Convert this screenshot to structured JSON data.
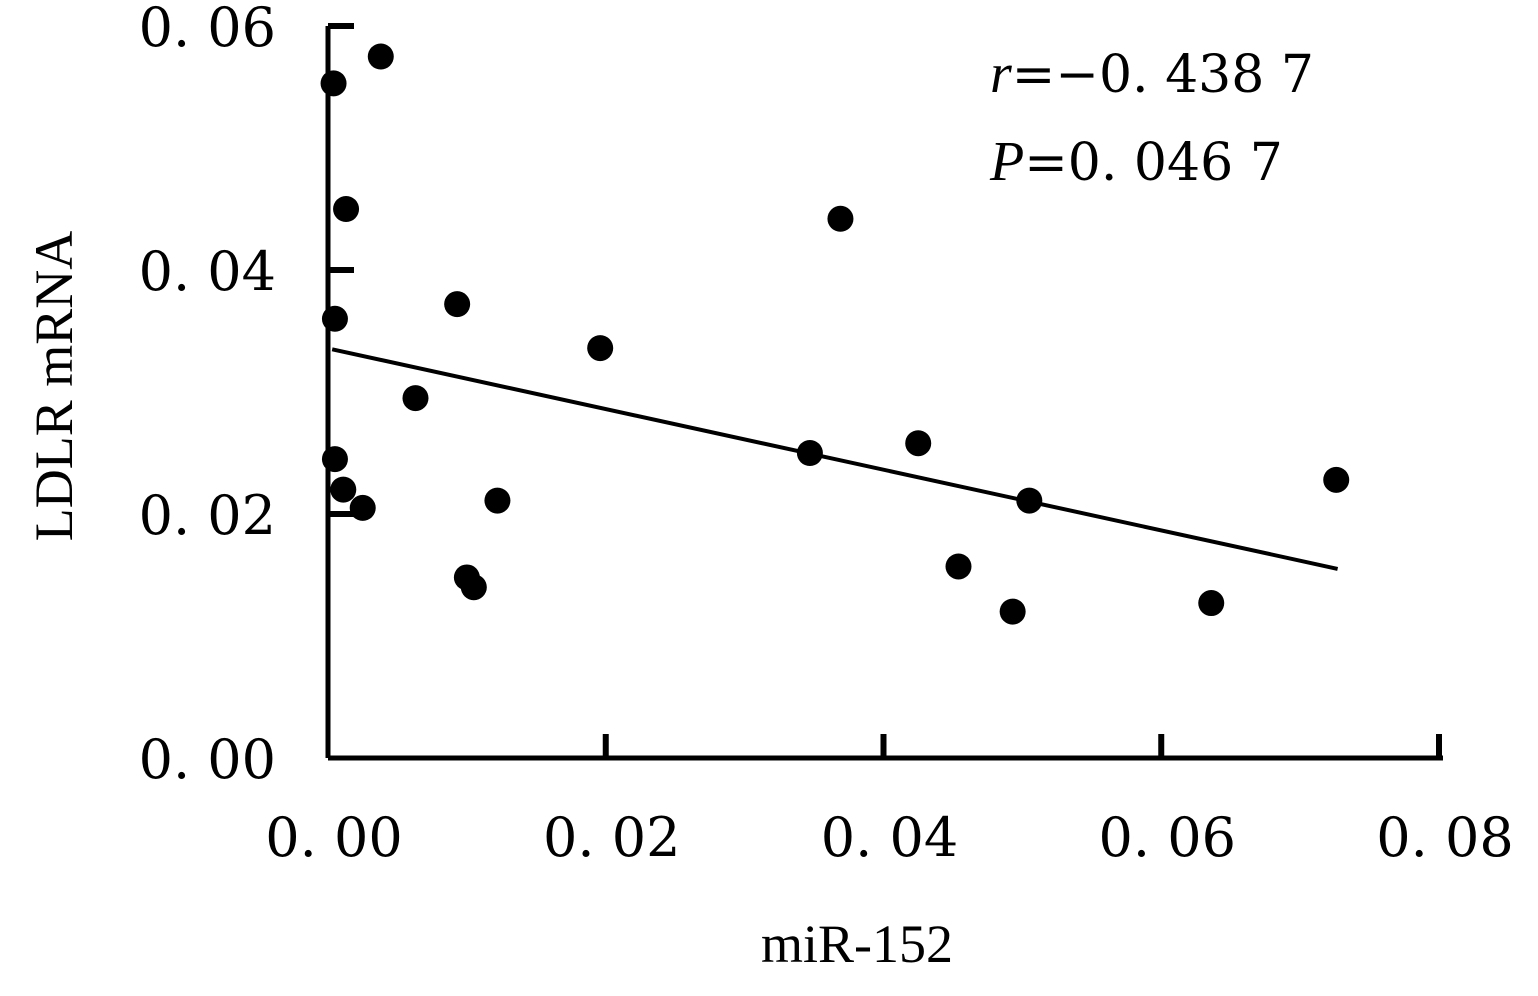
{
  "chart_data": {
    "type": "scatter",
    "xlabel": "miR-152",
    "ylabel": "LDLR mRNA",
    "xlim": [
      0.0,
      0.08
    ],
    "ylim": [
      0.0,
      0.06
    ],
    "x_ticks": [
      0.0,
      0.02,
      0.04,
      0.06,
      0.08
    ],
    "y_ticks": [
      0.0,
      0.02,
      0.04,
      0.06
    ],
    "x_tick_labels": [
      "0. 00",
      "0. 02",
      "0. 04",
      "0. 06",
      "0. 08"
    ],
    "y_tick_labels": [
      "0. 00",
      "0. 02",
      "0. 04",
      "0. 06"
    ],
    "grid": false,
    "points": [
      {
        "x": 0.0004,
        "y": 0.0553
      },
      {
        "x": 0.0038,
        "y": 0.0575
      },
      {
        "x": 0.0013,
        "y": 0.045
      },
      {
        "x": 0.0005,
        "y": 0.036
      },
      {
        "x": 0.0005,
        "y": 0.0245
      },
      {
        "x": 0.0011,
        "y": 0.022
      },
      {
        "x": 0.0025,
        "y": 0.0205
      },
      {
        "x": 0.0063,
        "y": 0.0295
      },
      {
        "x": 0.0093,
        "y": 0.0372
      },
      {
        "x": 0.01,
        "y": 0.0148
      },
      {
        "x": 0.0105,
        "y": 0.014
      },
      {
        "x": 0.0122,
        "y": 0.0211
      },
      {
        "x": 0.0196,
        "y": 0.0336
      },
      {
        "x": 0.0347,
        "y": 0.025
      },
      {
        "x": 0.0369,
        "y": 0.0442
      },
      {
        "x": 0.0425,
        "y": 0.0258
      },
      {
        "x": 0.0454,
        "y": 0.0157
      },
      {
        "x": 0.0493,
        "y": 0.012
      },
      {
        "x": 0.0505,
        "y": 0.0211
      },
      {
        "x": 0.0636,
        "y": 0.0127
      },
      {
        "x": 0.0726,
        "y": 0.0228
      }
    ],
    "fit_line": {
      "x": [
        0.0003,
        0.0727
      ],
      "y": [
        0.0335,
        0.0155
      ]
    },
    "annotations": [
      {
        "italic": "r",
        "text": "=−0. 438 7"
      },
      {
        "italic": "P",
        "text": "=0. 046 7"
      }
    ]
  }
}
